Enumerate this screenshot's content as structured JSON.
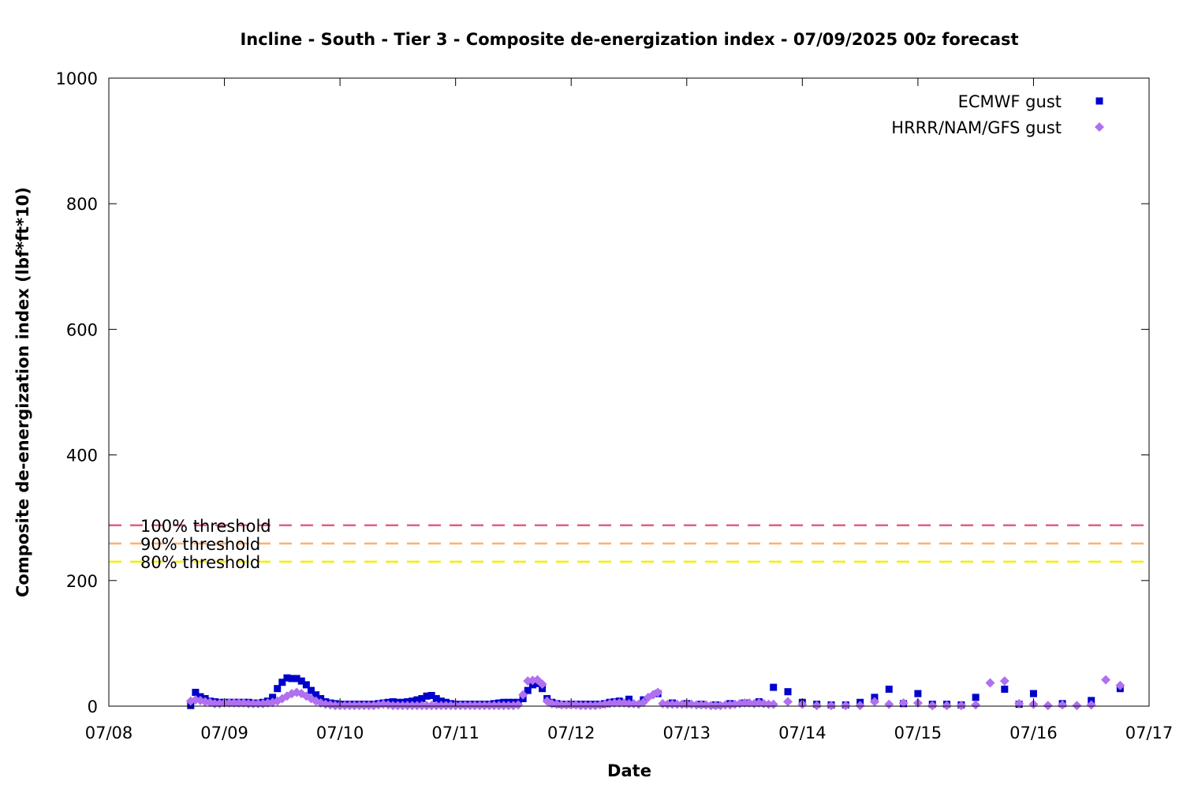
{
  "chart_data": {
    "type": "scatter",
    "title": "Incline - South - Tier 3 - Composite de-energization index - 07/09/2025 00z forecast",
    "xlabel": "Date",
    "ylabel": "Composite de-energization index (lbf*ft*10)",
    "x_unit": "days",
    "xlim": [
      "07/08 00:00",
      "07/17 00:00"
    ],
    "ylim": [
      0,
      1000
    ],
    "x_ticks": [
      "07/08",
      "07/09",
      "07/10",
      "07/11",
      "07/12",
      "07/13",
      "07/14",
      "07/15",
      "07/16",
      "07/17"
    ],
    "y_ticks": [
      0,
      200,
      400,
      600,
      800,
      1000
    ],
    "grid": false,
    "legend_position": "top-right",
    "thresholds": [
      {
        "label": "100% threshold",
        "value": 288,
        "color": "#e06080"
      },
      {
        "label": "90% threshold",
        "value": 259,
        "color": "#ffb070"
      },
      {
        "label": "80% threshold",
        "value": 230,
        "color": "#f0f000"
      }
    ],
    "series": [
      {
        "name": "ECMWF gust",
        "marker": "square",
        "color": "#0000cc",
        "points": [
          [
            "07/08 17:00",
            1
          ],
          [
            "07/08 18:00",
            22
          ],
          [
            "07/08 19:00",
            15
          ],
          [
            "07/08 20:00",
            12
          ],
          [
            "07/08 21:00",
            8
          ],
          [
            "07/08 22:00",
            7
          ],
          [
            "07/08 23:00",
            6
          ],
          [
            "07/09 00:00",
            6
          ],
          [
            "07/09 01:00",
            6
          ],
          [
            "07/09 02:00",
            6
          ],
          [
            "07/09 03:00",
            6
          ],
          [
            "07/09 04:00",
            6
          ],
          [
            "07/09 05:00",
            6
          ],
          [
            "07/09 06:00",
            5
          ],
          [
            "07/09 07:00",
            5
          ],
          [
            "07/09 08:00",
            6
          ],
          [
            "07/09 09:00",
            8
          ],
          [
            "07/09 10:00",
            14
          ],
          [
            "07/09 11:00",
            28
          ],
          [
            "07/09 12:00",
            38
          ],
          [
            "07/09 13:00",
            45
          ],
          [
            "07/09 14:00",
            44
          ],
          [
            "07/09 15:00",
            44
          ],
          [
            "07/09 16:00",
            40
          ],
          [
            "07/09 17:00",
            34
          ],
          [
            "07/09 18:00",
            25
          ],
          [
            "07/09 19:00",
            18
          ],
          [
            "07/09 20:00",
            12
          ],
          [
            "07/09 21:00",
            7
          ],
          [
            "07/09 22:00",
            5
          ],
          [
            "07/09 23:00",
            4
          ],
          [
            "07/10 00:00",
            3
          ],
          [
            "07/10 01:00",
            3
          ],
          [
            "07/10 02:00",
            3
          ],
          [
            "07/10 03:00",
            3
          ],
          [
            "07/10 04:00",
            3
          ],
          [
            "07/10 05:00",
            3
          ],
          [
            "07/10 06:00",
            3
          ],
          [
            "07/10 07:00",
            3
          ],
          [
            "07/10 08:00",
            4
          ],
          [
            "07/10 09:00",
            5
          ],
          [
            "07/10 10:00",
            6
          ],
          [
            "07/10 11:00",
            7
          ],
          [
            "07/10 12:00",
            6
          ],
          [
            "07/10 13:00",
            6
          ],
          [
            "07/10 14:00",
            7
          ],
          [
            "07/10 15:00",
            8
          ],
          [
            "07/10 16:00",
            10
          ],
          [
            "07/10 17:00",
            12
          ],
          [
            "07/10 18:00",
            16
          ],
          [
            "07/10 19:00",
            17
          ],
          [
            "07/10 20:00",
            12
          ],
          [
            "07/10 21:00",
            8
          ],
          [
            "07/10 22:00",
            6
          ],
          [
            "07/10 23:00",
            4
          ],
          [
            "07/11 00:00",
            3
          ],
          [
            "07/11 01:00",
            3
          ],
          [
            "07/11 02:00",
            3
          ],
          [
            "07/11 03:00",
            3
          ],
          [
            "07/11 04:00",
            3
          ],
          [
            "07/11 05:00",
            3
          ],
          [
            "07/11 06:00",
            3
          ],
          [
            "07/11 07:00",
            3
          ],
          [
            "07/11 08:00",
            4
          ],
          [
            "07/11 09:00",
            5
          ],
          [
            "07/11 10:00",
            6
          ],
          [
            "07/11 11:00",
            6
          ],
          [
            "07/11 12:00",
            6
          ],
          [
            "07/11 13:00",
            6
          ],
          [
            "07/11 14:00",
            12
          ],
          [
            "07/11 15:00",
            25
          ],
          [
            "07/11 16:00",
            34
          ],
          [
            "07/11 17:00",
            36
          ],
          [
            "07/11 18:00",
            28
          ],
          [
            "07/11 19:00",
            12
          ],
          [
            "07/11 20:00",
            6
          ],
          [
            "07/11 21:00",
            4
          ],
          [
            "07/11 22:00",
            3
          ],
          [
            "07/11 23:00",
            3
          ],
          [
            "07/12 00:00",
            3
          ],
          [
            "07/12 01:00",
            3
          ],
          [
            "07/12 02:00",
            3
          ],
          [
            "07/12 03:00",
            3
          ],
          [
            "07/12 04:00",
            3
          ],
          [
            "07/12 05:00",
            3
          ],
          [
            "07/12 06:00",
            3
          ],
          [
            "07/12 07:00",
            4
          ],
          [
            "07/12 08:00",
            6
          ],
          [
            "07/12 09:00",
            7
          ],
          [
            "07/12 10:00",
            8
          ],
          [
            "07/12 12:00",
            11
          ],
          [
            "07/12 15:00",
            10
          ],
          [
            "07/12 18:00",
            20
          ],
          [
            "07/12 21:00",
            5
          ],
          [
            "07/13 00:00",
            4
          ],
          [
            "07/13 03:00",
            3
          ],
          [
            "07/13 06:00",
            2
          ],
          [
            "07/13 09:00",
            4
          ],
          [
            "07/13 12:00",
            5
          ],
          [
            "07/13 15:00",
            7
          ],
          [
            "07/13 18:00",
            30
          ],
          [
            "07/13 21:00",
            23
          ],
          [
            "07/14 00:00",
            6
          ],
          [
            "07/14 03:00",
            3
          ],
          [
            "07/14 06:00",
            2
          ],
          [
            "07/14 09:00",
            2
          ],
          [
            "07/14 12:00",
            6
          ],
          [
            "07/14 15:00",
            14
          ],
          [
            "07/14 18:00",
            27
          ],
          [
            "07/14 21:00",
            4
          ],
          [
            "07/15 00:00",
            20
          ],
          [
            "07/15 03:00",
            3
          ],
          [
            "07/15 06:00",
            3
          ],
          [
            "07/15 09:00",
            2
          ],
          [
            "07/15 12:00",
            14
          ],
          [
            "07/15 18:00",
            27
          ],
          [
            "07/15 21:00",
            3
          ],
          [
            "07/16 00:00",
            20
          ],
          [
            "07/16 06:00",
            4
          ],
          [
            "07/16 12:00",
            9
          ],
          [
            "07/16 18:00",
            28
          ]
        ]
      },
      {
        "name": "HRRR/NAM/GFS gust",
        "marker": "diamond",
        "color": "#b070f0",
        "points": [
          [
            "07/08 17:00",
            8
          ],
          [
            "07/08 18:00",
            10
          ],
          [
            "07/08 19:00",
            9
          ],
          [
            "07/08 20:00",
            7
          ],
          [
            "07/08 21:00",
            6
          ],
          [
            "07/08 22:00",
            4
          ],
          [
            "07/08 23:00",
            4
          ],
          [
            "07/09 00:00",
            5
          ],
          [
            "07/09 01:00",
            5
          ],
          [
            "07/09 02:00",
            5
          ],
          [
            "07/09 03:00",
            5
          ],
          [
            "07/09 04:00",
            5
          ],
          [
            "07/09 05:00",
            4
          ],
          [
            "07/09 06:00",
            4
          ],
          [
            "07/09 07:00",
            4
          ],
          [
            "07/09 08:00",
            4
          ],
          [
            "07/09 09:00",
            5
          ],
          [
            "07/09 10:00",
            6
          ],
          [
            "07/09 11:00",
            8
          ],
          [
            "07/09 12:00",
            12
          ],
          [
            "07/09 13:00",
            16
          ],
          [
            "07/09 14:00",
            20
          ],
          [
            "07/09 15:00",
            22
          ],
          [
            "07/09 16:00",
            20
          ],
          [
            "07/09 17:00",
            16
          ],
          [
            "07/09 18:00",
            12
          ],
          [
            "07/09 19:00",
            8
          ],
          [
            "07/09 20:00",
            5
          ],
          [
            "07/09 21:00",
            3
          ],
          [
            "07/09 22:00",
            2
          ],
          [
            "07/09 23:00",
            1
          ],
          [
            "07/10 00:00",
            1
          ],
          [
            "07/10 01:00",
            1
          ],
          [
            "07/10 02:00",
            1
          ],
          [
            "07/10 03:00",
            1
          ],
          [
            "07/10 04:00",
            1
          ],
          [
            "07/10 05:00",
            1
          ],
          [
            "07/10 06:00",
            1
          ],
          [
            "07/10 07:00",
            1
          ],
          [
            "07/10 08:00",
            2
          ],
          [
            "07/10 09:00",
            3
          ],
          [
            "07/10 10:00",
            2
          ],
          [
            "07/10 11:00",
            1
          ],
          [
            "07/10 12:00",
            1
          ],
          [
            "07/10 13:00",
            1
          ],
          [
            "07/10 14:00",
            1
          ],
          [
            "07/10 15:00",
            1
          ],
          [
            "07/10 16:00",
            1
          ],
          [
            "07/10 17:00",
            1
          ],
          [
            "07/10 18:00",
            1
          ],
          [
            "07/10 19:00",
            1
          ],
          [
            "07/10 20:00",
            1
          ],
          [
            "07/10 21:00",
            1
          ],
          [
            "07/10 22:00",
            1
          ],
          [
            "07/10 23:00",
            1
          ],
          [
            "07/11 00:00",
            1
          ],
          [
            "07/11 01:00",
            1
          ],
          [
            "07/11 02:00",
            1
          ],
          [
            "07/11 03:00",
            1
          ],
          [
            "07/11 04:00",
            1
          ],
          [
            "07/11 05:00",
            1
          ],
          [
            "07/11 06:00",
            1
          ],
          [
            "07/11 07:00",
            1
          ],
          [
            "07/11 08:00",
            1
          ],
          [
            "07/11 09:00",
            1
          ],
          [
            "07/11 10:00",
            1
          ],
          [
            "07/11 11:00",
            1
          ],
          [
            "07/11 12:00",
            1
          ],
          [
            "07/11 13:00",
            2
          ],
          [
            "07/11 14:00",
            18
          ],
          [
            "07/11 15:00",
            40
          ],
          [
            "07/11 16:00",
            41
          ],
          [
            "07/11 17:00",
            42
          ],
          [
            "07/11 18:00",
            35
          ],
          [
            "07/11 19:00",
            8
          ],
          [
            "07/11 20:00",
            4
          ],
          [
            "07/11 21:00",
            3
          ],
          [
            "07/11 22:00",
            2
          ],
          [
            "07/11 23:00",
            2
          ],
          [
            "07/12 00:00",
            2
          ],
          [
            "07/12 01:00",
            2
          ],
          [
            "07/12 02:00",
            1
          ],
          [
            "07/12 03:00",
            1
          ],
          [
            "07/12 04:00",
            1
          ],
          [
            "07/12 05:00",
            1
          ],
          [
            "07/12 06:00",
            2
          ],
          [
            "07/12 07:00",
            3
          ],
          [
            "07/12 08:00",
            4
          ],
          [
            "07/12 09:00",
            5
          ],
          [
            "07/12 10:00",
            5
          ],
          [
            "07/12 11:00",
            5
          ],
          [
            "07/12 12:00",
            4
          ],
          [
            "07/12 13:00",
            4
          ],
          [
            "07/12 14:00",
            3
          ],
          [
            "07/12 15:00",
            6
          ],
          [
            "07/12 16:00",
            14
          ],
          [
            "07/12 17:00",
            18
          ],
          [
            "07/12 18:00",
            22
          ],
          [
            "07/12 19:00",
            4
          ],
          [
            "07/12 20:00",
            3
          ],
          [
            "07/12 21:00",
            3
          ],
          [
            "07/12 22:00",
            3
          ],
          [
            "07/12 23:00",
            3
          ],
          [
            "07/13 00:00",
            3
          ],
          [
            "07/13 01:00",
            3
          ],
          [
            "07/13 02:00",
            2
          ],
          [
            "07/13 03:00",
            2
          ],
          [
            "07/13 04:00",
            2
          ],
          [
            "07/13 05:00",
            1
          ],
          [
            "07/13 06:00",
            1
          ],
          [
            "07/13 07:00",
            1
          ],
          [
            "07/13 08:00",
            2
          ],
          [
            "07/13 09:00",
            2
          ],
          [
            "07/13 10:00",
            3
          ],
          [
            "07/13 11:00",
            4
          ],
          [
            "07/13 12:00",
            5
          ],
          [
            "07/13 13:00",
            5
          ],
          [
            "07/13 14:00",
            4
          ],
          [
            "07/13 15:00",
            5
          ],
          [
            "07/13 16:00",
            4
          ],
          [
            "07/13 17:00",
            3
          ],
          [
            "07/13 18:00",
            3
          ],
          [
            "07/13 21:00",
            7
          ],
          [
            "07/14 00:00",
            3
          ],
          [
            "07/14 03:00",
            1
          ],
          [
            "07/14 06:00",
            1
          ],
          [
            "07/14 09:00",
            1
          ],
          [
            "07/14 12:00",
            1
          ],
          [
            "07/14 15:00",
            7
          ],
          [
            "07/14 18:00",
            3
          ],
          [
            "07/14 21:00",
            5
          ],
          [
            "07/15 00:00",
            5
          ],
          [
            "07/15 03:00",
            1
          ],
          [
            "07/15 06:00",
            1
          ],
          [
            "07/15 09:00",
            1
          ],
          [
            "07/15 12:00",
            2
          ],
          [
            "07/15 15:00",
            37
          ],
          [
            "07/15 18:00",
            40
          ],
          [
            "07/15 21:00",
            4
          ],
          [
            "07/16 00:00",
            3
          ],
          [
            "07/16 03:00",
            1
          ],
          [
            "07/16 06:00",
            2
          ],
          [
            "07/16 09:00",
            1
          ],
          [
            "07/16 12:00",
            2
          ],
          [
            "07/16 15:00",
            42
          ],
          [
            "07/16 18:00",
            33
          ]
        ]
      }
    ]
  }
}
